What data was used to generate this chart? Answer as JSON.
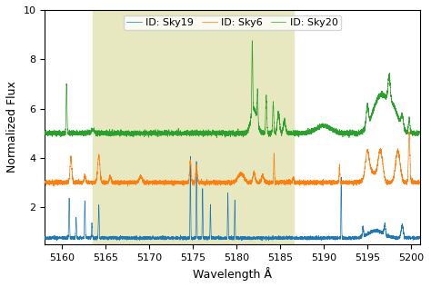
{
  "xlabel": "Wavelength Å",
  "ylabel": "Normalized Flux",
  "xlim": [
    5158,
    5201
  ],
  "ylim": [
    0.5,
    10
  ],
  "yticks": [
    2,
    4,
    6,
    8,
    10
  ],
  "xticks": [
    5160,
    5165,
    5170,
    5175,
    5180,
    5185,
    5190,
    5195,
    5200
  ],
  "shaded_region": [
    5163.5,
    5186.5
  ],
  "shade_color": "#e8e8c0",
  "legend_labels": [
    "ID: Sky19",
    "ID: Sky6",
    "ID: Sky20"
  ],
  "colors": [
    "#1f77b4",
    "#ff7f0e",
    "#2ca02c"
  ],
  "seed": 42,
  "sky19_baseline": 0.75,
  "sky6_baseline": 3.0,
  "sky20_baseline": 5.0
}
